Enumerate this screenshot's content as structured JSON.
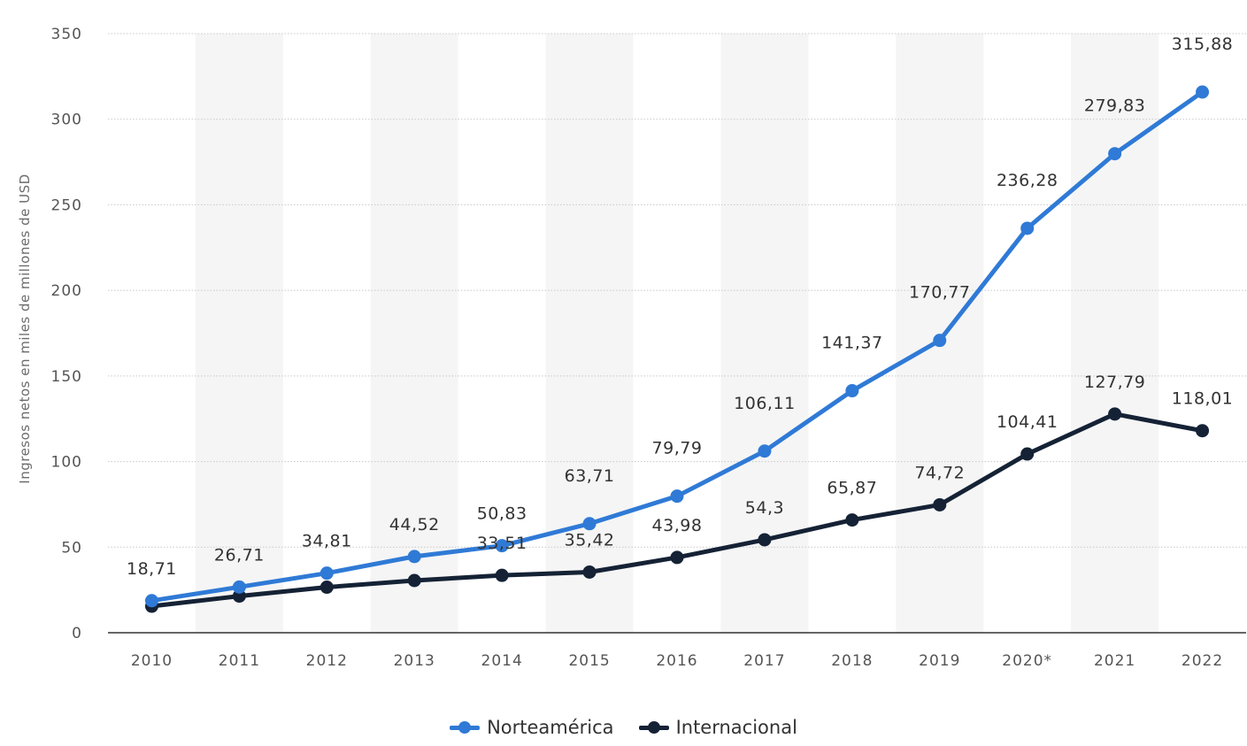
{
  "chart_data": {
    "type": "line",
    "categories": [
      "2010",
      "2011",
      "2012",
      "2013",
      "2014",
      "2015",
      "2016",
      "2017",
      "2018",
      "2019",
      "2020*",
      "2021",
      "2022"
    ],
    "series": [
      {
        "name": "Norteamérica",
        "color": "#2f7ad6",
        "values": [
          18.71,
          26.71,
          34.81,
          44.52,
          50.83,
          63.71,
          79.79,
          106.11,
          141.37,
          170.77,
          236.28,
          279.83,
          315.88
        ],
        "labels": [
          "18,71",
          "26,71",
          "34,81",
          "44,52",
          "50,83",
          "63,71",
          "79,79",
          "106,11",
          "141,37",
          "170,77",
          "236,28",
          "279,83",
          "315,88"
        ]
      },
      {
        "name": "Internacional",
        "color": "#152235",
        "values": [
          15.5,
          21.4,
          26.6,
          30.5,
          33.51,
          35.42,
          43.98,
          54.3,
          65.87,
          74.72,
          104.41,
          127.79,
          118.01
        ],
        "labels": [
          "",
          "",
          "",
          "",
          "33,51",
          "35,42",
          "43,98",
          "54,3",
          "65,87",
          "74,72",
          "104,41",
          "127,79",
          "118,01"
        ]
      }
    ],
    "ylabel": "Ingresos netos en miles de millones de USD",
    "xlabel": "",
    "ylim": [
      0,
      350
    ],
    "yticks": [
      0,
      50,
      100,
      150,
      200,
      250,
      300,
      350
    ],
    "grid": true,
    "legend_position": "bottom"
  }
}
